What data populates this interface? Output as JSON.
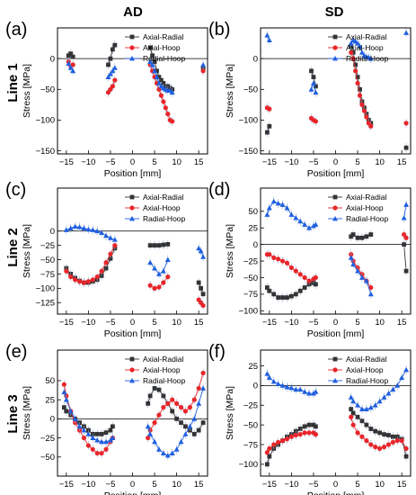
{
  "columns": [
    "AD",
    "SD"
  ],
  "rows": [
    "Line 1",
    "Line 2",
    "Line 3"
  ],
  "colors": {
    "Axial-Radial": "#333333",
    "Axial-Hoop": "#e8262a",
    "Radial-Hoop": "#1f5fe0"
  },
  "chart_data": [
    {
      "panel": "(a)",
      "column": "AD",
      "row": "Line 1",
      "type": "scatter",
      "xlabel": "Position [mm]",
      "ylabel": "Stress [MPa]",
      "xlim": [
        -17,
        17
      ],
      "ylim": [
        -155,
        50
      ],
      "xticks": [
        -15,
        -10,
        -5,
        0,
        5,
        10,
        15
      ],
      "yticks": [
        0,
        -50,
        -100,
        -150
      ],
      "grid": false,
      "legend": "top-right",
      "zero_line": true,
      "series": [
        {
          "name": "Axial-Radial",
          "marker": "square",
          "x": [
            -14.5,
            -14,
            -13.5,
            -5.5,
            -5,
            -4.5,
            -4,
            4,
            4.5,
            5,
            5.5,
            6,
            6.5,
            7,
            7.5,
            8,
            8.5,
            9,
            16
          ],
          "y": [
            5,
            8,
            3,
            -10,
            0,
            15,
            22,
            18,
            5,
            -5,
            -20,
            -30,
            -35,
            -40,
            -45,
            -45,
            -48,
            -50,
            -15
          ]
        },
        {
          "name": "Axial-Hoop",
          "marker": "circle",
          "x": [
            -14.5,
            -14,
            -13.5,
            -5.5,
            -5,
            -4.5,
            -4,
            4,
            4.5,
            5,
            5.5,
            6,
            6.5,
            7,
            7.5,
            8,
            8.5,
            9,
            16
          ],
          "y": [
            -5,
            -12,
            -10,
            -55,
            -50,
            -45,
            -35,
            -10,
            -20,
            -30,
            -40,
            -50,
            -60,
            -70,
            -80,
            -90,
            -100,
            -102,
            -20
          ]
        },
        {
          "name": "Radial-Hoop",
          "marker": "triangle",
          "x": [
            -14.5,
            -14,
            -13.5,
            -5.5,
            -5,
            -4.5,
            -4,
            4,
            4.5,
            5,
            5.5,
            6,
            6.5,
            7,
            7.5,
            8,
            8.5,
            9,
            16
          ],
          "y": [
            -8,
            -15,
            -20,
            -30,
            -25,
            -20,
            -15,
            -5,
            -10,
            -20,
            -30,
            -40,
            -45,
            -48,
            -50,
            -52,
            -52,
            -55,
            -10
          ]
        }
      ]
    },
    {
      "panel": "(b)",
      "column": "SD",
      "row": "Line 1",
      "type": "scatter",
      "xlabel": "Position [mm]",
      "ylabel": "Stress [MPa]",
      "xlim": [
        -17,
        17
      ],
      "ylim": [
        -155,
        50
      ],
      "xticks": [
        -15,
        -10,
        -5,
        0,
        5,
        10,
        15
      ],
      "yticks": [
        0,
        -50,
        -100,
        -150
      ],
      "grid": false,
      "legend": "top-right",
      "zero_line": true,
      "series": [
        {
          "name": "Axial-Radial",
          "marker": "square",
          "x": [
            -15.5,
            -15,
            -5.5,
            -5,
            -4.5,
            3.5,
            4,
            4.5,
            5,
            5.5,
            6,
            6.5,
            7,
            7.5,
            8,
            16
          ],
          "y": [
            -120,
            -110,
            -20,
            -30,
            -45,
            20,
            10,
            -10,
            -30,
            -50,
            -70,
            -80,
            -90,
            -100,
            -105,
            -145
          ]
        },
        {
          "name": "Axial-Hoop",
          "marker": "circle",
          "x": [
            -15.5,
            -15,
            -5.5,
            -5,
            -4.5,
            3.5,
            4,
            4.5,
            5,
            5.5,
            6,
            6.5,
            7,
            7.5,
            8,
            16
          ],
          "y": [
            -80,
            -82,
            -97,
            -100,
            -102,
            10,
            0,
            -20,
            -40,
            -60,
            -75,
            -85,
            -95,
            -105,
            -110,
            -105
          ]
        },
        {
          "name": "Radial-Hoop",
          "marker": "triangle",
          "x": [
            -15.5,
            -15,
            -5.5,
            -5,
            -4.5,
            3.5,
            4,
            4.5,
            5,
            5.5,
            6,
            6.5,
            7,
            7.5,
            8,
            16
          ],
          "y": [
            38,
            30,
            -50,
            -40,
            -55,
            25,
            30,
            28,
            25,
            20,
            10,
            5,
            3,
            2,
            0,
            42
          ]
        }
      ]
    },
    {
      "panel": "(c)",
      "column": "AD",
      "row": "Line 2",
      "type": "scatter",
      "xlabel": "Position [mm]",
      "ylabel": "Stress [MPa]",
      "xlim": [
        -17,
        17
      ],
      "ylim": [
        -145,
        75
      ],
      "xticks": [
        -15,
        -10,
        -5,
        0,
        5,
        10,
        15
      ],
      "yticks": [
        0,
        -25,
        -50,
        -75,
        -100,
        -125
      ],
      "grid": false,
      "legend": "top-right",
      "zero_line": true,
      "series": [
        {
          "name": "Axial-Radial",
          "marker": "square",
          "x": [
            -15,
            -14,
            -13,
            -12,
            -11,
            -10,
            -9,
            -8,
            -7,
            -6,
            -5,
            -4,
            4,
            5,
            6,
            7,
            8,
            15,
            15.5,
            16
          ],
          "y": [
            -65,
            -75,
            -82,
            -87,
            -90,
            -90,
            -88,
            -85,
            -78,
            -65,
            -48,
            -30,
            -25,
            -25,
            -25,
            -24,
            -23,
            -90,
            -100,
            -110
          ]
        },
        {
          "name": "Axial-Hoop",
          "marker": "circle",
          "x": [
            -15,
            -14,
            -13,
            -12,
            -11,
            -10,
            -9,
            -8,
            -7,
            -6,
            -5,
            -4,
            4,
            5,
            6,
            7,
            8,
            15,
            15.5,
            16
          ],
          "y": [
            -70,
            -80,
            -85,
            -88,
            -90,
            -88,
            -85,
            -80,
            -70,
            -55,
            -40,
            -25,
            -95,
            -100,
            -98,
            -90,
            -80,
            -120,
            -125,
            -130
          ]
        },
        {
          "name": "Radial-Hoop",
          "marker": "triangle",
          "x": [
            -15,
            -14,
            -13,
            -12,
            -11,
            -10,
            -9,
            -8,
            -7,
            -6,
            -5,
            -4,
            4,
            5,
            6,
            7,
            8,
            15,
            15.5,
            16
          ],
          "y": [
            2,
            5,
            8,
            7,
            5,
            3,
            2,
            0,
            -3,
            -8,
            -12,
            -15,
            -55,
            -65,
            -75,
            -70,
            -50,
            -30,
            -35,
            -45
          ]
        }
      ]
    },
    {
      "panel": "(d)",
      "column": "SD",
      "row": "Line 2",
      "type": "scatter",
      "xlabel": "Position [mm]",
      "ylabel": "Stress [MPa]",
      "xlim": [
        -17,
        17
      ],
      "ylim": [
        -105,
        85
      ],
      "xticks": [
        -15,
        -10,
        -5,
        0,
        5,
        10,
        15
      ],
      "yticks": [
        50,
        25,
        0,
        -25,
        -50,
        -75,
        -100
      ],
      "grid": false,
      "legend": "top-right",
      "zero_line": true,
      "series": [
        {
          "name": "Axial-Radial",
          "marker": "square",
          "x": [
            -15.5,
            -15,
            -14,
            -13,
            -12,
            -11,
            -10,
            -9,
            -8,
            -7,
            -6,
            -5,
            -4.5,
            3.5,
            4,
            5,
            6,
            7,
            8,
            15.5,
            16
          ],
          "y": [
            -65,
            -70,
            -75,
            -80,
            -80,
            -80,
            -78,
            -75,
            -70,
            -65,
            -60,
            -58,
            -60,
            12,
            15,
            10,
            10,
            12,
            15,
            0,
            -40
          ]
        },
        {
          "name": "Axial-Hoop",
          "marker": "circle",
          "x": [
            -15.5,
            -15,
            -14,
            -13,
            -12,
            -11,
            -10,
            -9,
            -8,
            -7,
            -6,
            -5,
            -4.5,
            3.5,
            4,
            5,
            6,
            7,
            8,
            15.5,
            16
          ],
          "y": [
            -15,
            -15,
            -20,
            -22,
            -25,
            -28,
            -35,
            -40,
            -45,
            -50,
            -55,
            -52,
            -50,
            -15,
            -25,
            -35,
            -45,
            -55,
            -65,
            15,
            10
          ]
        },
        {
          "name": "Radial-Hoop",
          "marker": "triangle",
          "x": [
            -15.5,
            -15,
            -14,
            -13,
            -12,
            -11,
            -10,
            -9,
            -8,
            -7,
            -6,
            -5,
            -4.5,
            3.5,
            4,
            5,
            6,
            7,
            8,
            15.5,
            16
          ],
          "y": [
            45,
            55,
            65,
            62,
            60,
            55,
            45,
            40,
            35,
            30,
            25,
            28,
            30,
            -20,
            -30,
            -40,
            -50,
            -55,
            -75,
            40,
            60
          ]
        }
      ]
    },
    {
      "panel": "(e)",
      "column": "AD",
      "row": "Line 3",
      "type": "scatter",
      "xlabel": "Position [mm]",
      "ylabel": "Stress [MPa]",
      "xlim": [
        -17,
        17
      ],
      "ylim": [
        -75,
        90
      ],
      "xticks": [
        -15,
        -10,
        -5,
        0,
        5,
        10,
        15
      ],
      "yticks": [
        50,
        25,
        0,
        -25,
        -50
      ],
      "grid": false,
      "legend": "top-right",
      "zero_line": true,
      "series": [
        {
          "name": "Axial-Radial",
          "marker": "square",
          "x": [
            -15.5,
            -15,
            -14,
            -13,
            -12,
            -11,
            -10,
            -9,
            -8,
            -7,
            -6,
            -5,
            -4.5,
            3.5,
            4,
            5,
            6,
            7,
            8,
            9,
            10,
            11,
            12,
            13,
            14,
            15,
            16
          ],
          "y": [
            15,
            10,
            5,
            0,
            -5,
            -10,
            -15,
            -20,
            -20,
            -20,
            -18,
            -15,
            -10,
            20,
            30,
            40,
            38,
            30,
            20,
            10,
            0,
            -5,
            -10,
            -15,
            -20,
            -15,
            -5
          ]
        },
        {
          "name": "Axial-Hoop",
          "marker": "circle",
          "x": [
            -15.5,
            -15,
            -14,
            -13,
            -12,
            -11,
            -10,
            -9,
            -8,
            -7,
            -6,
            -5,
            -4.5,
            3.5,
            4,
            5,
            6,
            7,
            8,
            9,
            10,
            11,
            12,
            13,
            14,
            15,
            16
          ],
          "y": [
            45,
            30,
            10,
            -5,
            -15,
            -25,
            -35,
            -40,
            -45,
            -45,
            -40,
            -30,
            -25,
            -25,
            -15,
            -5,
            5,
            15,
            20,
            25,
            20,
            15,
            10,
            15,
            25,
            40,
            60
          ]
        },
        {
          "name": "Radial-Hoop",
          "marker": "triangle",
          "x": [
            -15.5,
            -15,
            -14,
            -13,
            -12,
            -11,
            -10,
            -9,
            -8,
            -7,
            -6,
            -5,
            -4.5,
            3.5,
            4,
            5,
            6,
            7,
            8,
            9,
            10,
            11,
            12,
            13,
            14,
            15,
            16
          ],
          "y": [
            35,
            25,
            10,
            0,
            -10,
            -15,
            -20,
            -25,
            -28,
            -30,
            -30,
            -28,
            -25,
            -10,
            -20,
            -30,
            -40,
            -45,
            -48,
            -45,
            -40,
            -30,
            -20,
            -10,
            0,
            20,
            40
          ]
        }
      ]
    },
    {
      "panel": "(f)",
      "column": "SD",
      "row": "Line 3",
      "type": "scatter",
      "xlabel": "Position [mm]",
      "ylabel": "Stress [MPa]",
      "xlim": [
        -17,
        17
      ],
      "ylim": [
        -115,
        45
      ],
      "xticks": [
        -15,
        -10,
        -5,
        0,
        5,
        10,
        15
      ],
      "yticks": [
        25,
        0,
        -25,
        -50,
        -75,
        -100
      ],
      "grid": false,
      "legend": "top-right",
      "zero_line": true,
      "series": [
        {
          "name": "Axial-Radial",
          "marker": "square",
          "x": [
            -15.5,
            -15,
            -14,
            -13,
            -12,
            -11,
            -10,
            -9,
            -8,
            -7,
            -6,
            -5,
            -4.5,
            3.5,
            4,
            5,
            6,
            7,
            8,
            9,
            10,
            11,
            12,
            13,
            14,
            15,
            16
          ],
          "y": [
            -100,
            -90,
            -80,
            -75,
            -70,
            -65,
            -62,
            -58,
            -55,
            -52,
            -50,
            -50,
            -52,
            -30,
            -35,
            -40,
            -45,
            -50,
            -55,
            -58,
            -60,
            -62,
            -63,
            -65,
            -65,
            -68,
            -90
          ]
        },
        {
          "name": "Axial-Hoop",
          "marker": "circle",
          "x": [
            -15.5,
            -15,
            -14,
            -13,
            -12,
            -11,
            -10,
            -9,
            -8,
            -7,
            -6,
            -5,
            -4.5,
            3.5,
            4,
            5,
            6,
            7,
            8,
            9,
            10,
            11,
            12,
            13,
            14,
            15,
            16
          ],
          "y": [
            -85,
            -80,
            -75,
            -72,
            -70,
            -68,
            -65,
            -63,
            -62,
            -60,
            -60,
            -60,
            -62,
            -40,
            -50,
            -60,
            -65,
            -70,
            -75,
            -78,
            -80,
            -78,
            -75,
            -72,
            -70,
            -70,
            -80
          ]
        },
        {
          "name": "Radial-Hoop",
          "marker": "triangle",
          "x": [
            -15.5,
            -15,
            -14,
            -13,
            -12,
            -11,
            -10,
            -9,
            -8,
            -7,
            -6,
            -5,
            -4.5,
            3.5,
            4,
            5,
            6,
            7,
            8,
            9,
            10,
            11,
            12,
            13,
            14,
            15,
            16
          ],
          "y": [
            15,
            10,
            5,
            2,
            0,
            -2,
            -3,
            -5,
            -5,
            -8,
            -10,
            -10,
            -8,
            -15,
            -20,
            -25,
            -30,
            -30,
            -28,
            -25,
            -20,
            -15,
            -10,
            -5,
            0,
            10,
            20
          ]
        }
      ]
    }
  ]
}
